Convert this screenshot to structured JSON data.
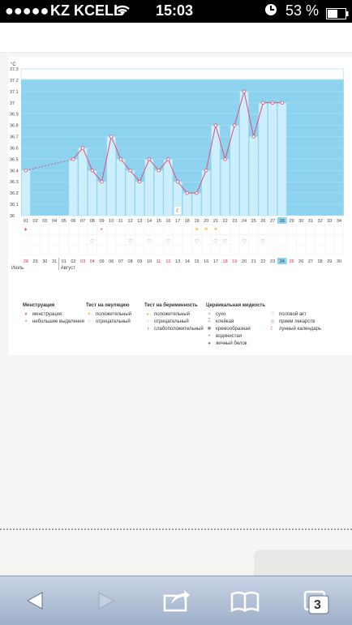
{
  "status_bar": {
    "carrier": "KZ KCELL",
    "time": "15:03",
    "battery": "53 %"
  },
  "chart_data": {
    "type": "line",
    "ylabel": "°C",
    "y_ticks": [
      "37.3",
      "37.2",
      "37.1",
      "37",
      "36.9",
      "36.8",
      "36.7",
      "36.6",
      "36.5",
      "36.4",
      "36.3",
      "36.2",
      "36.1",
      "36"
    ],
    "ylim": [
      36,
      37.3
    ],
    "cycle_days": [
      "01",
      "02",
      "03",
      "04",
      "05",
      "06",
      "07",
      "08",
      "09",
      "10",
      "11",
      "12",
      "13",
      "14",
      "15",
      "16",
      "17",
      "18",
      "19",
      "20",
      "21",
      "22",
      "23",
      "24",
      "25",
      "26",
      "27",
      "28",
      "29",
      "30",
      "31",
      "32",
      "33",
      "34"
    ],
    "dates": [
      "28",
      "29",
      "30",
      "31",
      "01",
      "02",
      "03",
      "04",
      "05",
      "06",
      "07",
      "08",
      "09",
      "10",
      "11",
      "12",
      "13",
      "14",
      "15",
      "16",
      "17",
      "18",
      "19",
      "20",
      "21",
      "22",
      "23",
      "24",
      "25",
      "26",
      "27",
      "28",
      "29",
      "30"
    ],
    "red_date_indices": [
      0,
      6,
      7,
      14,
      15,
      21,
      22,
      28
    ],
    "month_labels": [
      "Июль",
      "Август"
    ],
    "current_day_index": 27,
    "series": [
      {
        "values": [
          36.4,
          null,
          null,
          null,
          null,
          36.5,
          36.6,
          36.4,
          36.3,
          36.7,
          36.5,
          36.4,
          36.3,
          36.5,
          36.4,
          36.5,
          36.3,
          36.2,
          36.2,
          36.4,
          36.8,
          36.5,
          36.8,
          37.1,
          36.7,
          37.0,
          37.0,
          37.0,
          null,
          null,
          null,
          null,
          null,
          null
        ]
      }
    ],
    "grid": true
  },
  "markers": {
    "menstruation_days": [
      0
    ],
    "spotting_days": [
      8
    ],
    "ovulation_positive_days": [
      18,
      19,
      20
    ],
    "libido_days": [
      7,
      11,
      13,
      15,
      18,
      20,
      21,
      23,
      25
    ],
    "lunar_days": [
      16
    ]
  },
  "legend": {
    "menstruation": {
      "title": "Менструация",
      "items": [
        {
          "icon": "drop-icon",
          "label": "менструация"
        },
        {
          "icon": "small-drop-icon",
          "label": "небольшие выделения"
        }
      ]
    },
    "ovulation_test": {
      "title": "Тест на овуляцию",
      "items": [
        {
          "icon": "sun-icon",
          "label": "положительный"
        },
        {
          "icon": "circle-icon",
          "label": "отрицательный"
        }
      ]
    },
    "pregnancy_test": {
      "title": "Тест на беременность",
      "items": [
        {
          "icon": "test-positive-icon",
          "label": "положительный"
        },
        {
          "icon": "test-negative-icon",
          "label": "отрицательный"
        },
        {
          "icon": "test-weak-icon",
          "label": "слабоположительный"
        }
      ]
    },
    "cervical_fluid": {
      "title": "Цервикальная жидкость",
      "items": [
        {
          "icon": "dry-icon",
          "label": "сухо"
        },
        {
          "icon": "sticky-icon",
          "label": "клейкая"
        },
        {
          "icon": "creamy-icon",
          "label": "кремообразная"
        },
        {
          "icon": "watery-icon",
          "label": "водянистая"
        },
        {
          "icon": "eggwhite-icon",
          "label": "яичный белок"
        }
      ]
    },
    "other": {
      "items": [
        {
          "icon": "heart-icon",
          "label": "половой акт"
        },
        {
          "icon": "pill-icon",
          "label": "прием лекарств"
        },
        {
          "icon": "moon-icon",
          "label": "лунный календарь"
        }
      ]
    }
  },
  "toolbar": {
    "tabs_count": "3"
  },
  "colors": {
    "plot_bg": "#8dd3ef",
    "bar_fill": "#cdeffb",
    "line": "#e0507a",
    "red_date": "#d42a52",
    "current_day": "#8dd3ef"
  }
}
